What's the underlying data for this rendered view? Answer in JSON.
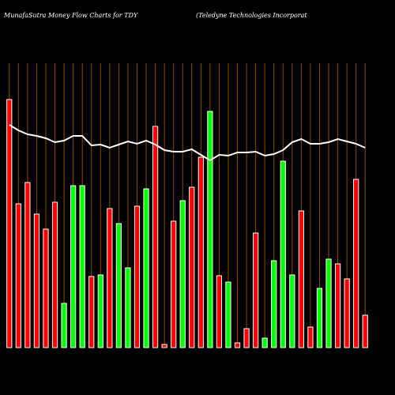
{
  "chart_data": {
    "type": "bar",
    "title": "MunafaSutra  Money Flow  Charts for TDY",
    "subtitle": "(Teledyne   Technologies Incorporat",
    "categories": [
      null,
      null,
      null,
      null,
      null,
      null,
      null,
      null,
      null,
      null,
      null,
      null,
      null,
      null,
      null,
      null,
      null,
      null,
      null,
      null,
      null,
      null,
      null,
      null,
      null,
      null,
      null,
      null,
      null,
      null,
      null,
      null,
      null,
      null,
      null,
      null,
      null,
      null,
      null,
      null
    ],
    "values": [
      314,
      182,
      209,
      169,
      150,
      184,
      56,
      205,
      205,
      90,
      92,
      176,
      157,
      101,
      179,
      201,
      280,
      4,
      160,
      186,
      203,
      241,
      299,
      91,
      83,
      6,
      24,
      145,
      12,
      110,
      236,
      92,
      173,
      26,
      75,
      112,
      106,
      87,
      213,
      41
    ],
    "colors": [
      "#ff0000",
      "#ff0000",
      "#ff0000",
      "#ff0000",
      "#ff0000",
      "#ff0000",
      "#00ff00",
      "#00ff00",
      "#00ff00",
      "#ff0000",
      "#00ff00",
      "#ff0000",
      "#00ff00",
      "#00ff00",
      "#ff0000",
      "#00ff00",
      "#ff0000",
      "#ff0000",
      "#ff0000",
      "#00ff00",
      "#ff0000",
      "#ff0000",
      "#00ff00",
      "#ff0000",
      "#00ff00",
      "#ff0000",
      "#ff0000",
      "#ff0000",
      "#00ff00",
      "#00ff00",
      "#00ff00",
      "#00ff00",
      "#ff0000",
      "#ff0000",
      "#00ff00",
      "#00ff00",
      "#ff0000",
      "#ff0000",
      "#ff0000",
      "#ff0000"
    ],
    "line_values": [
      282,
      275,
      270,
      268,
      265,
      260,
      262,
      268,
      268,
      256,
      257,
      253,
      257,
      261,
      258,
      262,
      257,
      250,
      248,
      248,
      251,
      244,
      237,
      244,
      243,
      247,
      247,
      248,
      243,
      245,
      250,
      260,
      264,
      258,
      258,
      260,
      264,
      261,
      258,
      253
    ],
    "line_color": "#ffffff",
    "grid_color": "#8b4a00",
    "ylim": [
      0,
      360
    ]
  }
}
